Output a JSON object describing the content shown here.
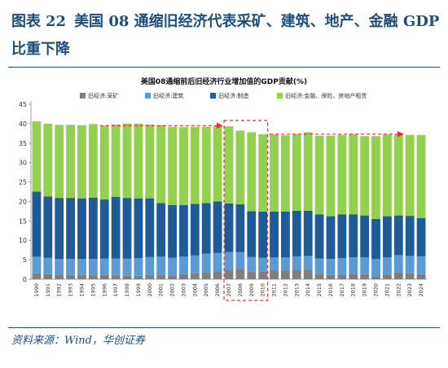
{
  "figure": {
    "label": "图表",
    "number": "22",
    "title": "美国 08 通缩旧经济代表采矿、建筑、地产、金融 GDP 比重下降"
  },
  "source": "资料来源：Wind，华创证券",
  "colors": {
    "mining": "#7f7f7f",
    "construction": "#5b9bd5",
    "manufacturing": "#1f5b99",
    "finance": "#92d050",
    "arrow": "#e03030",
    "highlight_box": "#e03030",
    "title": "#1f4e79"
  },
  "chart_data": {
    "type": "bar",
    "stacked": true,
    "title": "美国08通缩前后旧经济行业增加值的GDP贡献(%)",
    "legend": [
      "旧经济:采矿",
      "旧经济:建筑",
      "旧经济:制造",
      "旧经济:金融、保险、房地产租赁"
    ],
    "legend_position": "top",
    "categories": [
      "1990",
      "1991",
      "1992",
      "1993",
      "1994",
      "1995",
      "1996",
      "1997",
      "1998",
      "1999",
      "2000",
      "2001",
      "2002",
      "2003",
      "2004",
      "2005",
      "2006",
      "2007",
      "2008",
      "2009",
      "2010",
      "2011",
      "2012",
      "2013",
      "2014",
      "2015",
      "2016",
      "2017",
      "2018",
      "2019",
      "2020",
      "2021",
      "2022",
      "2023",
      "2024"
    ],
    "series": [
      {
        "name": "旧经济:采矿",
        "values": [
          1.5,
          1.3,
          1.2,
          1.1,
          1.1,
          1.0,
          1.1,
          1.1,
          0.9,
          0.9,
          1.2,
          1.2,
          1.0,
          1.3,
          1.5,
          1.8,
          2.0,
          2.3,
          2.7,
          1.9,
          1.9,
          2.2,
          2.2,
          2.4,
          2.4,
          1.4,
          1.1,
          1.2,
          1.4,
          1.3,
          0.8,
          1.2,
          1.8,
          1.5,
          1.3
        ]
      },
      {
        "name": "旧经济:建筑",
        "values": [
          4.3,
          4.2,
          4.0,
          4.1,
          4.1,
          4.2,
          4.2,
          4.2,
          4.4,
          4.5,
          4.5,
          4.6,
          4.5,
          4.5,
          4.6,
          4.8,
          4.8,
          4.7,
          4.3,
          3.8,
          3.6,
          3.4,
          3.4,
          3.5,
          3.6,
          3.9,
          4.1,
          4.2,
          4.2,
          4.3,
          4.4,
          4.4,
          4.4,
          4.5,
          4.6
        ]
      },
      {
        "name": "旧经济:制造",
        "values": [
          16.7,
          15.8,
          15.7,
          15.7,
          15.6,
          15.8,
          15.2,
          15.9,
          15.6,
          15.4,
          15.1,
          13.8,
          13.6,
          13.3,
          13.3,
          13.0,
          13.2,
          12.5,
          12.3,
          11.8,
          11.9,
          11.8,
          11.8,
          11.7,
          11.6,
          11.4,
          11.0,
          11.3,
          11.1,
          10.8,
          10.3,
          10.6,
          10.2,
          10.3,
          9.8
        ]
      },
      {
        "name": "旧经济:金融、保险、房地产租赁",
        "values": [
          18.1,
          18.7,
          18.8,
          18.8,
          18.8,
          18.9,
          19.0,
          18.6,
          19.1,
          19.2,
          19.0,
          20.0,
          20.1,
          20.0,
          19.8,
          19.6,
          19.4,
          19.8,
          18.9,
          20.3,
          19.9,
          19.8,
          19.6,
          19.7,
          20.2,
          20.2,
          20.7,
          20.4,
          20.6,
          20.4,
          21.3,
          21.0,
          20.8,
          20.8,
          21.4
        ]
      }
    ],
    "ylim": [
      0,
      45
    ],
    "yticks": [
      0,
      5,
      10,
      15,
      20,
      25,
      30,
      35,
      40,
      45
    ],
    "xlabel": "",
    "ylabel": "",
    "grid": false,
    "annotations": [
      {
        "type": "arrow",
        "from": "1996",
        "to": "2006",
        "y": 39.5,
        "style": "dashed"
      },
      {
        "type": "box",
        "from": "2007",
        "to": "2010",
        "style": "dashed"
      },
      {
        "type": "arrow",
        "from": "2011",
        "to": "2022",
        "y": 37.3,
        "style": "dashed"
      }
    ]
  }
}
